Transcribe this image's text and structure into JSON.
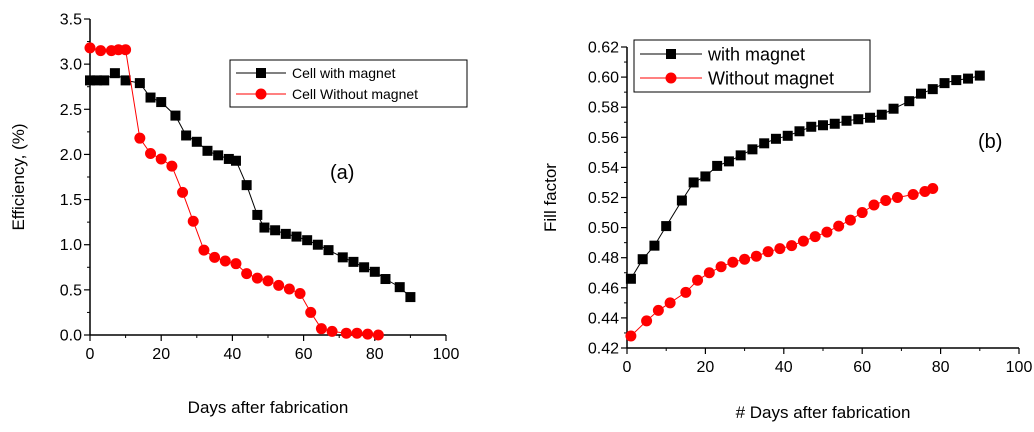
{
  "chart_data": [
    {
      "type": "line",
      "panel_label": "(a)",
      "title": "",
      "xlabel": "Days after fabrication",
      "ylabel": "Efficiency, (%)",
      "xlim": [
        0,
        100
      ],
      "ylim": [
        0.0,
        3.5
      ],
      "x_ticks": [
        "0",
        "20",
        "40",
        "60",
        "80",
        "100"
      ],
      "y_ticks": [
        "0.0",
        "0.5",
        "1.0",
        "1.5",
        "2.0",
        "2.5",
        "3.0",
        "3.5"
      ],
      "legend_position": "top-right",
      "grid": false,
      "series": [
        {
          "name": "Cell with magnet",
          "color": "#000000",
          "marker": "square",
          "points": [
            [
              0,
              2.82
            ],
            [
              2,
              2.82
            ],
            [
              4,
              2.82
            ],
            [
              7,
              2.9
            ],
            [
              10,
              2.82
            ],
            [
              14,
              2.79
            ],
            [
              17,
              2.63
            ],
            [
              20,
              2.58
            ],
            [
              24,
              2.43
            ],
            [
              27,
              2.21
            ],
            [
              30,
              2.14
            ],
            [
              33,
              2.04
            ],
            [
              36,
              1.99
            ],
            [
              39,
              1.95
            ],
            [
              41,
              1.93
            ],
            [
              44,
              1.66
            ],
            [
              47,
              1.33
            ],
            [
              49,
              1.19
            ],
            [
              52,
              1.16
            ],
            [
              55,
              1.12
            ],
            [
              58,
              1.09
            ],
            [
              61,
              1.05
            ],
            [
              64,
              1.0
            ],
            [
              67,
              0.94
            ],
            [
              71,
              0.86
            ],
            [
              74,
              0.81
            ],
            [
              77,
              0.75
            ],
            [
              80,
              0.7
            ],
            [
              83,
              0.62
            ],
            [
              87,
              0.53
            ],
            [
              90,
              0.42
            ]
          ]
        },
        {
          "name": "Cell Without magnet",
          "color": "#ff0000",
          "marker": "circle",
          "points": [
            [
              0,
              3.18
            ],
            [
              3,
              3.15
            ],
            [
              6,
              3.15
            ],
            [
              8,
              3.16
            ],
            [
              10,
              3.16
            ],
            [
              14,
              2.18
            ],
            [
              17,
              2.01
            ],
            [
              20,
              1.95
            ],
            [
              23,
              1.87
            ],
            [
              26,
              1.58
            ],
            [
              29,
              1.26
            ],
            [
              32,
              0.94
            ],
            [
              35,
              0.86
            ],
            [
              38,
              0.82
            ],
            [
              41,
              0.79
            ],
            [
              44,
              0.68
            ],
            [
              47,
              0.63
            ],
            [
              50,
              0.6
            ],
            [
              53,
              0.55
            ],
            [
              56,
              0.51
            ],
            [
              59,
              0.46
            ],
            [
              62,
              0.25
            ],
            [
              65,
              0.07
            ],
            [
              68,
              0.04
            ],
            [
              72,
              0.02
            ],
            [
              75,
              0.02
            ],
            [
              78,
              0.01
            ],
            [
              81,
              0.0
            ]
          ]
        }
      ]
    },
    {
      "type": "line",
      "panel_label": "(b)",
      "title": "",
      "xlabel": "# Days after fabrication",
      "ylabel": "Fill factor",
      "xlim": [
        0,
        100
      ],
      "ylim": [
        0.42,
        0.62
      ],
      "x_ticks": [
        "0",
        "20",
        "40",
        "60",
        "80",
        "100"
      ],
      "y_ticks": [
        "0.42",
        "0.44",
        "0.46",
        "0.48",
        "0.50",
        "0.52",
        "0.54",
        "0.56",
        "0.58",
        "0.60",
        "0.62"
      ],
      "legend_position": "top-left",
      "grid": false,
      "series": [
        {
          "name": "with magnet",
          "color": "#000000",
          "marker": "square",
          "points": [
            [
              1,
              0.466
            ],
            [
              4,
              0.479
            ],
            [
              7,
              0.488
            ],
            [
              10,
              0.501
            ],
            [
              14,
              0.518
            ],
            [
              17,
              0.53
            ],
            [
              20,
              0.534
            ],
            [
              23,
              0.541
            ],
            [
              26,
              0.544
            ],
            [
              29,
              0.548
            ],
            [
              32,
              0.552
            ],
            [
              35,
              0.556
            ],
            [
              38,
              0.559
            ],
            [
              41,
              0.561
            ],
            [
              44,
              0.564
            ],
            [
              47,
              0.567
            ],
            [
              50,
              0.568
            ],
            [
              53,
              0.569
            ],
            [
              56,
              0.571
            ],
            [
              59,
              0.572
            ],
            [
              62,
              0.573
            ],
            [
              65,
              0.575
            ],
            [
              68,
              0.579
            ],
            [
              72,
              0.584
            ],
            [
              75,
              0.589
            ],
            [
              78,
              0.592
            ],
            [
              81,
              0.596
            ],
            [
              84,
              0.598
            ],
            [
              87,
              0.599
            ],
            [
              90,
              0.601
            ]
          ]
        },
        {
          "name": "Without magnet",
          "color": "#ff0000",
          "marker": "circle",
          "points": [
            [
              1,
              0.428
            ],
            [
              5,
              0.438
            ],
            [
              8,
              0.445
            ],
            [
              11,
              0.45
            ],
            [
              15,
              0.457
            ],
            [
              18,
              0.465
            ],
            [
              21,
              0.47
            ],
            [
              24,
              0.474
            ],
            [
              27,
              0.477
            ],
            [
              30,
              0.479
            ],
            [
              33,
              0.481
            ],
            [
              36,
              0.484
            ],
            [
              39,
              0.486
            ],
            [
              42,
              0.488
            ],
            [
              45,
              0.491
            ],
            [
              48,
              0.494
            ],
            [
              51,
              0.497
            ],
            [
              54,
              0.501
            ],
            [
              57,
              0.505
            ],
            [
              60,
              0.51
            ],
            [
              63,
              0.515
            ],
            [
              66,
              0.518
            ],
            [
              69,
              0.52
            ],
            [
              73,
              0.522
            ],
            [
              76,
              0.524
            ],
            [
              78,
              0.526
            ]
          ]
        }
      ]
    }
  ]
}
